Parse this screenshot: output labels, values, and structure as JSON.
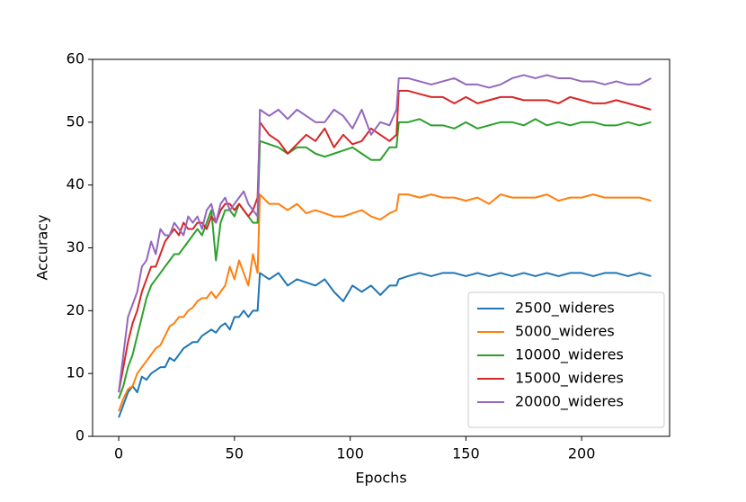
{
  "chart_data": {
    "type": "line",
    "xlabel": "Epochs",
    "ylabel": "Accuracy",
    "x": [
      0,
      2,
      4,
      6,
      8,
      10,
      12,
      14,
      16,
      18,
      20,
      22,
      24,
      26,
      28,
      30,
      32,
      34,
      36,
      38,
      40,
      42,
      44,
      46,
      48,
      50,
      52,
      54,
      56,
      58,
      60,
      61,
      65,
      69,
      73,
      77,
      81,
      85,
      89,
      93,
      97,
      101,
      105,
      109,
      113,
      117,
      120,
      121,
      125,
      130,
      135,
      140,
      145,
      150,
      155,
      160,
      165,
      170,
      175,
      180,
      185,
      190,
      195,
      200,
      205,
      210,
      215,
      220,
      225,
      230
    ],
    "series": [
      {
        "name": "2500_wideres",
        "color": "#1f77b4",
        "values": [
          3,
          5,
          7,
          8,
          7,
          9.5,
          9,
          10,
          10.5,
          11,
          11,
          12.5,
          12,
          13,
          14,
          14.5,
          15,
          15,
          16,
          16.5,
          17,
          16.5,
          17.5,
          18,
          17,
          19,
          19,
          20,
          19,
          20,
          20,
          26,
          25,
          26,
          24,
          25,
          24.5,
          24,
          25,
          23,
          21.5,
          24,
          23,
          24,
          22.5,
          24,
          24,
          25,
          25.5,
          26,
          25.5,
          26,
          26,
          25.5,
          26,
          25.5,
          26,
          25.5,
          26,
          25.5,
          26,
          25.5,
          26,
          26,
          25.5,
          26,
          26,
          25.5,
          26,
          25.5
        ]
      },
      {
        "name": "5000_wideres",
        "color": "#ff7f0e",
        "values": [
          4,
          6,
          7.5,
          8,
          10,
          11,
          12,
          13,
          14,
          14.5,
          16,
          17.5,
          18,
          19,
          19,
          20,
          20.5,
          21.5,
          22,
          22,
          23,
          22,
          23,
          24,
          27,
          25,
          28,
          26,
          24,
          29,
          26,
          38.5,
          37,
          37,
          36,
          37,
          35.5,
          36,
          35.5,
          35,
          35,
          35.5,
          36,
          35,
          34.5,
          35.5,
          36,
          38.5,
          38.5,
          38,
          38.5,
          38,
          38,
          37.5,
          38,
          37,
          38.5,
          38,
          38,
          38,
          38.5,
          37.5,
          38,
          38,
          38.5,
          38,
          38,
          38,
          38,
          37.5
        ]
      },
      {
        "name": "10000_wideres",
        "color": "#2ca02c",
        "values": [
          6,
          8,
          11,
          13,
          16,
          19,
          22,
          24,
          25,
          26,
          27,
          28,
          29,
          29,
          30,
          31,
          32,
          33,
          32,
          34,
          36,
          28,
          34,
          36,
          36,
          35,
          37,
          36,
          35,
          34,
          34,
          47,
          46.5,
          46,
          45,
          46,
          46,
          45,
          44.5,
          45,
          45.5,
          46,
          45,
          44,
          44,
          46,
          46,
          50,
          50,
          50.5,
          49.5,
          49.5,
          49,
          50,
          49,
          49.5,
          50,
          50,
          49.5,
          50.5,
          49.5,
          50,
          49.5,
          50,
          50,
          49.5,
          49.5,
          50,
          49.5,
          50
        ]
      },
      {
        "name": "15000_wideres",
        "color": "#d62728",
        "values": [
          7,
          11,
          15,
          18,
          20,
          23,
          25,
          27,
          27,
          29,
          31,
          32,
          33,
          32,
          34,
          33,
          33,
          34,
          34,
          33,
          35,
          34,
          36,
          37,
          37,
          36,
          37,
          36,
          35,
          36,
          38,
          50,
          48,
          47,
          45,
          46.5,
          48,
          47,
          49,
          46,
          48,
          46.5,
          47,
          49,
          48,
          47,
          48,
          55,
          55,
          54.5,
          54,
          54,
          53,
          54,
          53,
          53.5,
          54,
          54,
          53.5,
          53.5,
          53.5,
          53,
          54,
          53.5,
          53,
          53,
          53.5,
          53,
          52.5,
          52
        ]
      },
      {
        "name": "20000_wideres",
        "color": "#9467bd",
        "values": [
          7,
          13,
          19,
          21,
          23,
          27,
          28,
          31,
          29,
          33,
          32,
          32,
          34,
          33,
          32,
          35,
          34,
          35,
          33,
          36,
          37,
          34,
          37,
          38,
          36,
          37,
          38,
          39,
          37,
          36,
          35,
          52,
          51,
          52,
          50.5,
          52,
          51,
          50,
          50,
          52,
          51,
          49,
          52,
          48,
          50,
          49.5,
          52,
          57,
          57,
          56.5,
          56,
          56.5,
          57,
          56,
          56,
          55.5,
          56,
          57,
          57.5,
          57,
          57.5,
          57,
          57,
          56.5,
          56.5,
          56,
          56.5,
          56,
          56,
          57
        ]
      }
    ],
    "xlim": [
      -11.3,
      238
    ],
    "ylim": [
      0,
      60
    ],
    "xticks": [
      0,
      50,
      100,
      150,
      200
    ],
    "yticks": [
      0,
      10,
      20,
      30,
      40,
      50,
      60
    ],
    "legend": "lower right"
  }
}
